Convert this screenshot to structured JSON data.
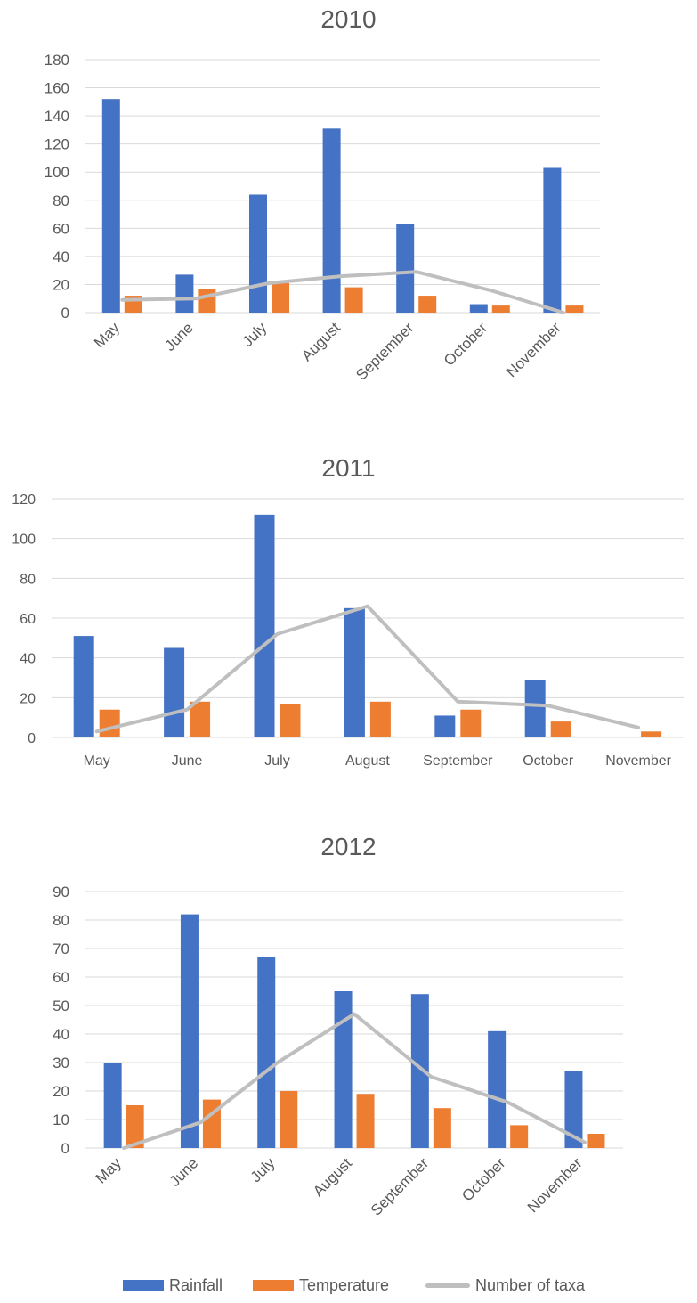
{
  "colors": {
    "rainfall": "#4472C4",
    "temperature": "#ED7D31",
    "taxa": "#BFBFBF",
    "grid": "#D9D9D9",
    "text": "#595959"
  },
  "legend": {
    "rainfall": "Rainfall",
    "temperature": "Temperature",
    "taxa": "Number of taxa"
  },
  "chart_data": [
    {
      "type": "bar",
      "title": "2010",
      "categories": [
        "May",
        "June",
        "July",
        "August",
        "September",
        "October",
        "November"
      ],
      "ylim": [
        0,
        180
      ],
      "yticks": [
        0,
        20,
        40,
        60,
        80,
        100,
        120,
        140,
        160,
        180
      ],
      "xlabel_rotated": true,
      "grid": true,
      "series": [
        {
          "name": "Rainfall",
          "type": "bar",
          "values": [
            152,
            27,
            84,
            131,
            63,
            6,
            103
          ]
        },
        {
          "name": "Temperature",
          "type": "bar",
          "values": [
            12,
            17,
            21,
            18,
            12,
            5,
            5
          ]
        },
        {
          "name": "Number of taxa",
          "type": "line",
          "values": [
            9,
            10,
            21,
            26,
            29,
            16,
            0
          ]
        }
      ]
    },
    {
      "type": "bar",
      "title": "2011",
      "categories": [
        "May",
        "June",
        "July",
        "August",
        "September",
        "October",
        "November"
      ],
      "ylim": [
        0,
        120
      ],
      "yticks": [
        0,
        20,
        40,
        60,
        80,
        100,
        120
      ],
      "xlabel_rotated": false,
      "grid": true,
      "series": [
        {
          "name": "Rainfall",
          "type": "bar",
          "values": [
            51,
            45,
            112,
            65,
            11,
            29,
            0
          ]
        },
        {
          "name": "Temperature",
          "type": "bar",
          "values": [
            14,
            18,
            17,
            18,
            14,
            8,
            3
          ]
        },
        {
          "name": "Number of taxa",
          "type": "line",
          "values": [
            3,
            14,
            52,
            66,
            18,
            16,
            5
          ]
        }
      ]
    },
    {
      "type": "bar",
      "title": "2012",
      "categories": [
        "May",
        "June",
        "July",
        "August",
        "September",
        "October",
        "November"
      ],
      "ylim": [
        0,
        90
      ],
      "yticks": [
        0,
        10,
        20,
        30,
        40,
        50,
        60,
        70,
        80,
        90
      ],
      "xlabel_rotated": true,
      "grid": true,
      "series": [
        {
          "name": "Rainfall",
          "type": "bar",
          "values": [
            30,
            82,
            67,
            55,
            54,
            41,
            27
          ]
        },
        {
          "name": "Temperature",
          "type": "bar",
          "values": [
            15,
            17,
            20,
            19,
            14,
            8,
            5
          ]
        },
        {
          "name": "Number of taxa",
          "type": "line",
          "values": [
            0,
            9,
            30,
            47,
            25,
            16,
            2
          ]
        }
      ]
    }
  ]
}
